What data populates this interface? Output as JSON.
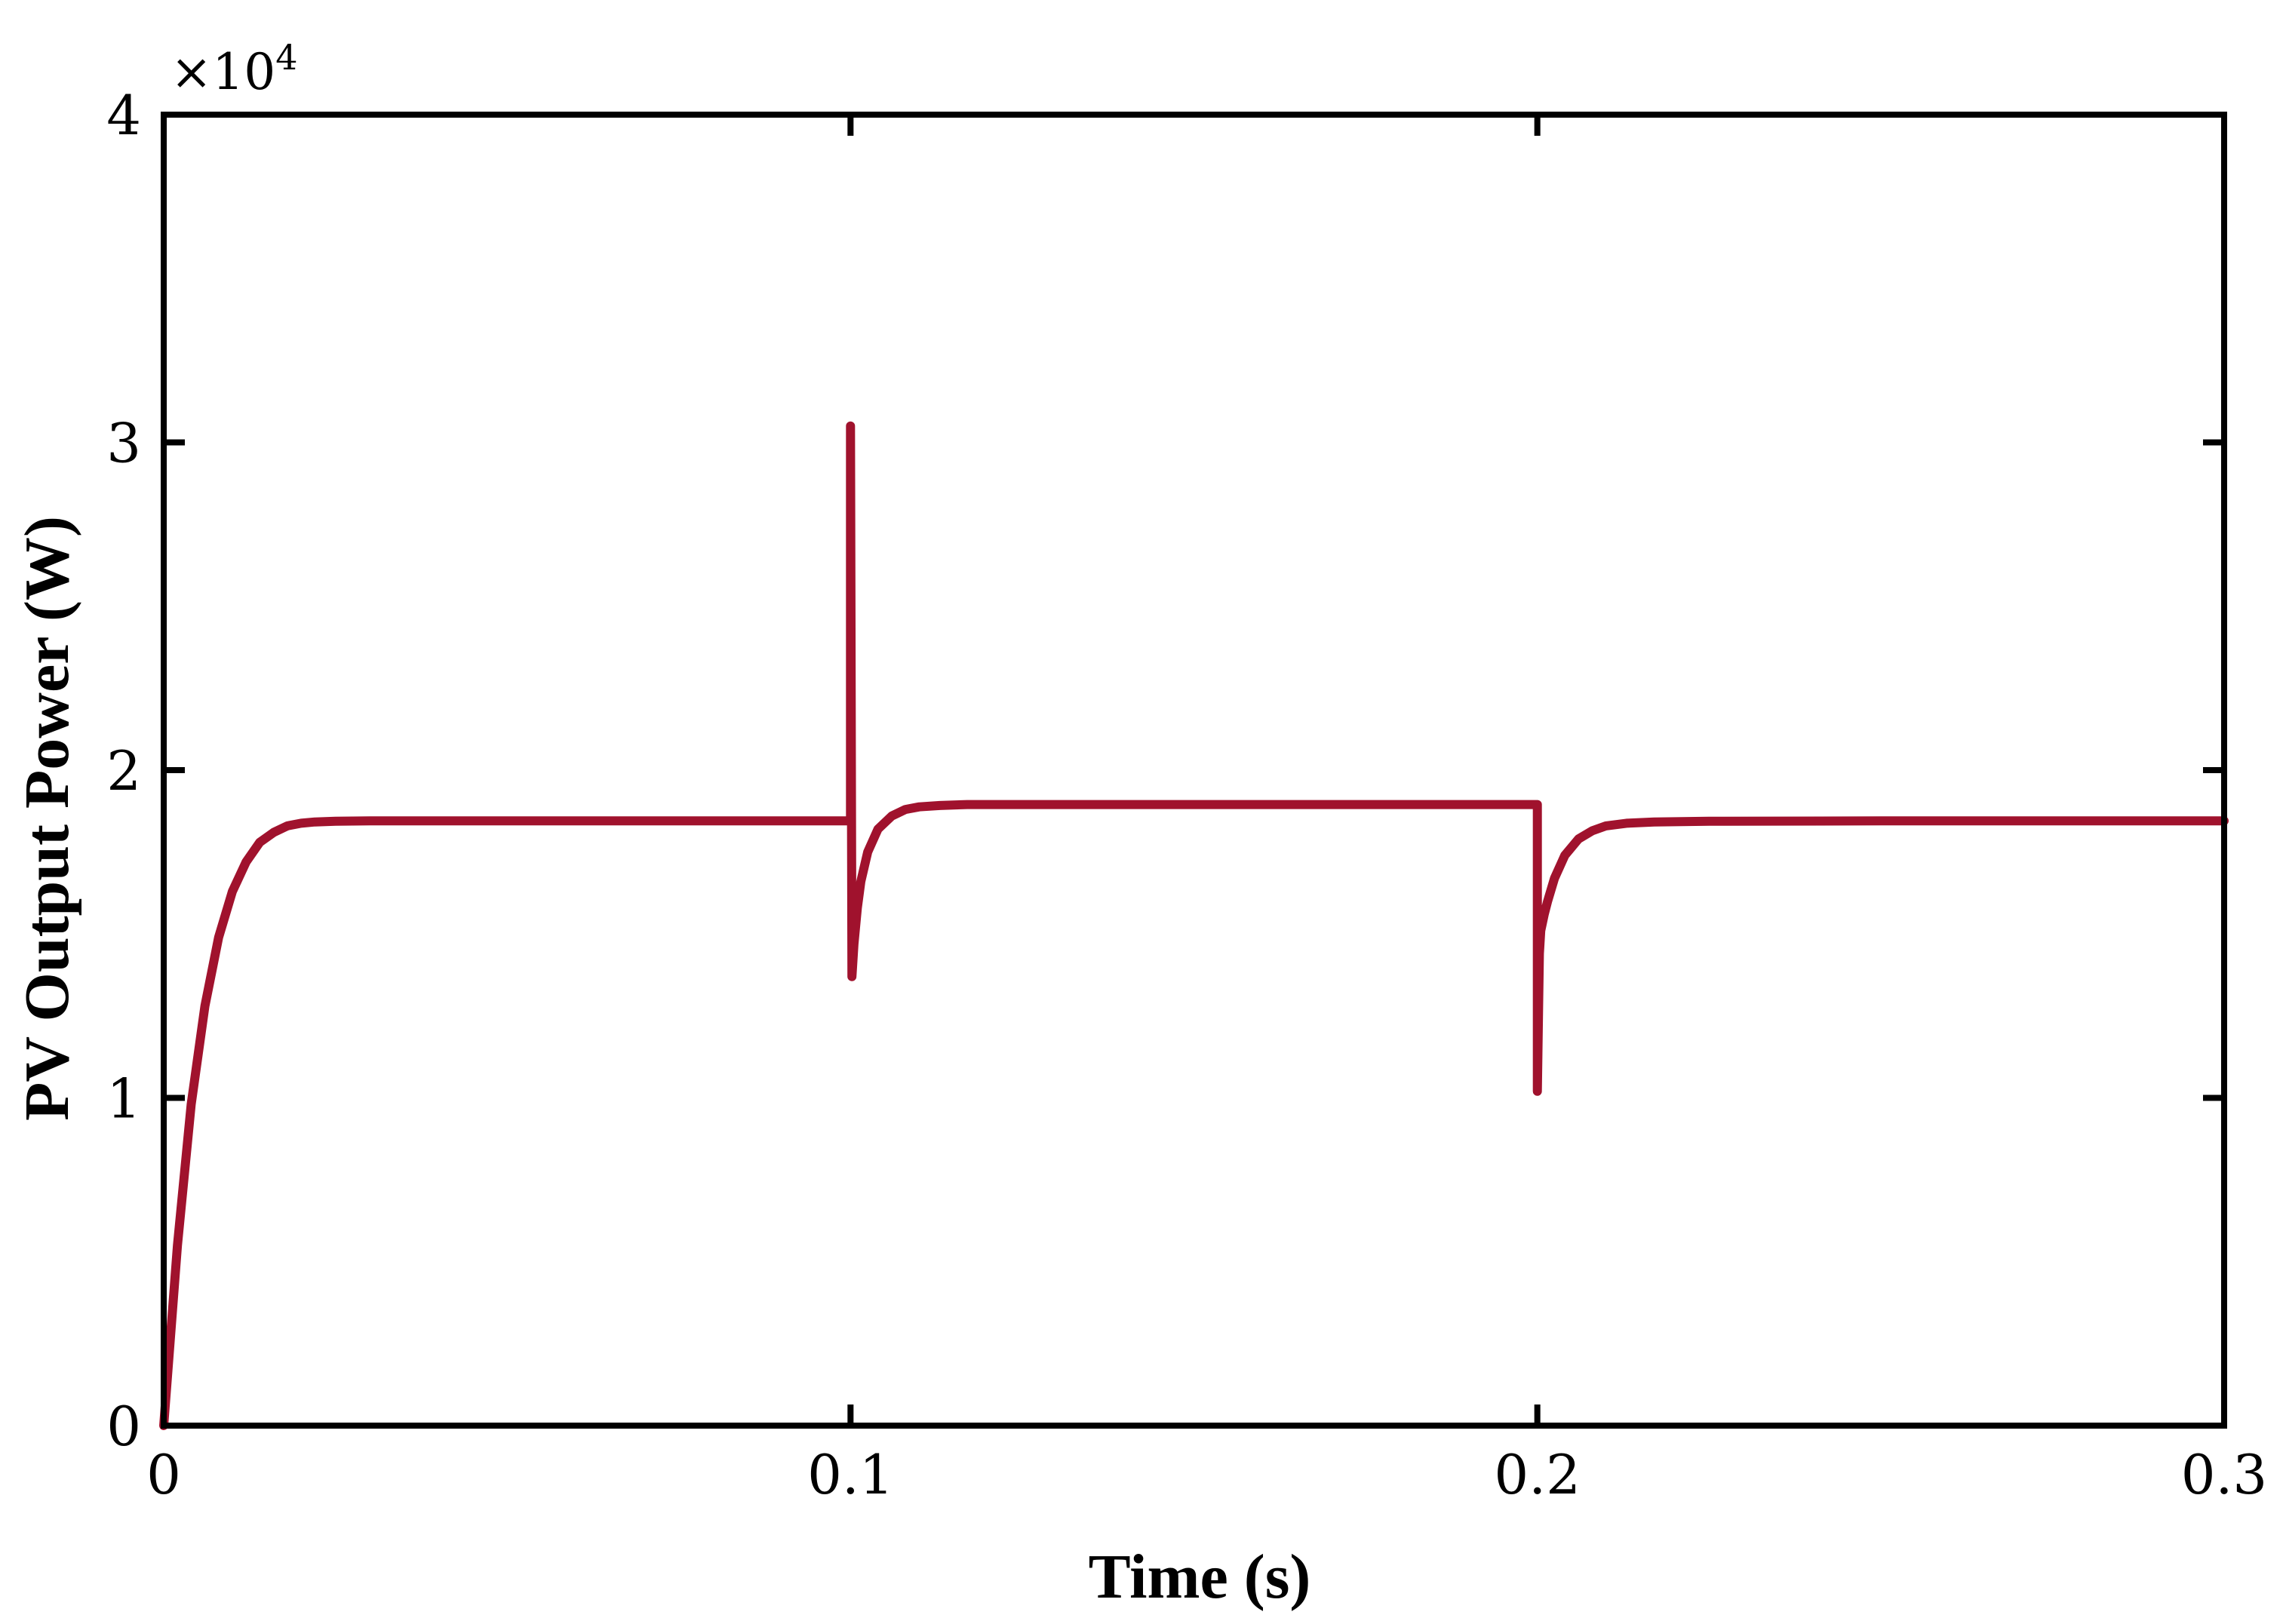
{
  "chart_data": {
    "type": "line",
    "title": "",
    "xlabel": "Time (s)",
    "ylabel": "PV Output Power (W)",
    "xlim": [
      0,
      0.3
    ],
    "ylim": [
      0,
      40000
    ],
    "x_ticks": [
      0,
      0.1,
      0.2,
      0.3
    ],
    "x_tick_labels": [
      "0",
      "0.1",
      "0.2",
      "0.3"
    ],
    "y_ticks": [
      0,
      10000,
      20000,
      30000,
      40000
    ],
    "y_tick_labels": [
      "0",
      "1",
      "2",
      "3",
      "4"
    ],
    "y_exponent_label": {
      "base": "×10",
      "power": "4"
    },
    "grid": false,
    "legend": "none",
    "series": [
      {
        "color": "#a0122d",
        "x": [
          0,
          0.002,
          0.004,
          0.006,
          0.008,
          0.01,
          0.012,
          0.014,
          0.016,
          0.018,
          0.02,
          0.022,
          0.025,
          0.03,
          0.04,
          0.06,
          0.08,
          0.0999,
          0.1,
          0.1,
          0.1002,
          0.1005,
          0.101,
          0.1015,
          0.1025,
          0.104,
          0.106,
          0.108,
          0.11,
          0.113,
          0.117,
          0.125,
          0.15,
          0.18,
          0.1999,
          0.2,
          0.2,
          0.2003,
          0.2005,
          0.201,
          0.2015,
          0.2025,
          0.204,
          0.206,
          0.208,
          0.21,
          0.213,
          0.217,
          0.225,
          0.25,
          0.28,
          0.3
        ],
        "y": [
          0,
          5500,
          9800,
          12800,
          14900,
          16300,
          17200,
          17800,
          18100,
          18300,
          18380,
          18420,
          18440,
          18450,
          18450,
          18450,
          18450,
          18450,
          18450,
          30500,
          13700,
          14700,
          15800,
          16600,
          17500,
          18200,
          18600,
          18800,
          18880,
          18920,
          18950,
          18950,
          18950,
          18950,
          18950,
          18950,
          10200,
          14400,
          15100,
          15600,
          16000,
          16700,
          17400,
          17900,
          18150,
          18300,
          18380,
          18420,
          18440,
          18450,
          18450,
          18450
        ]
      }
    ]
  }
}
